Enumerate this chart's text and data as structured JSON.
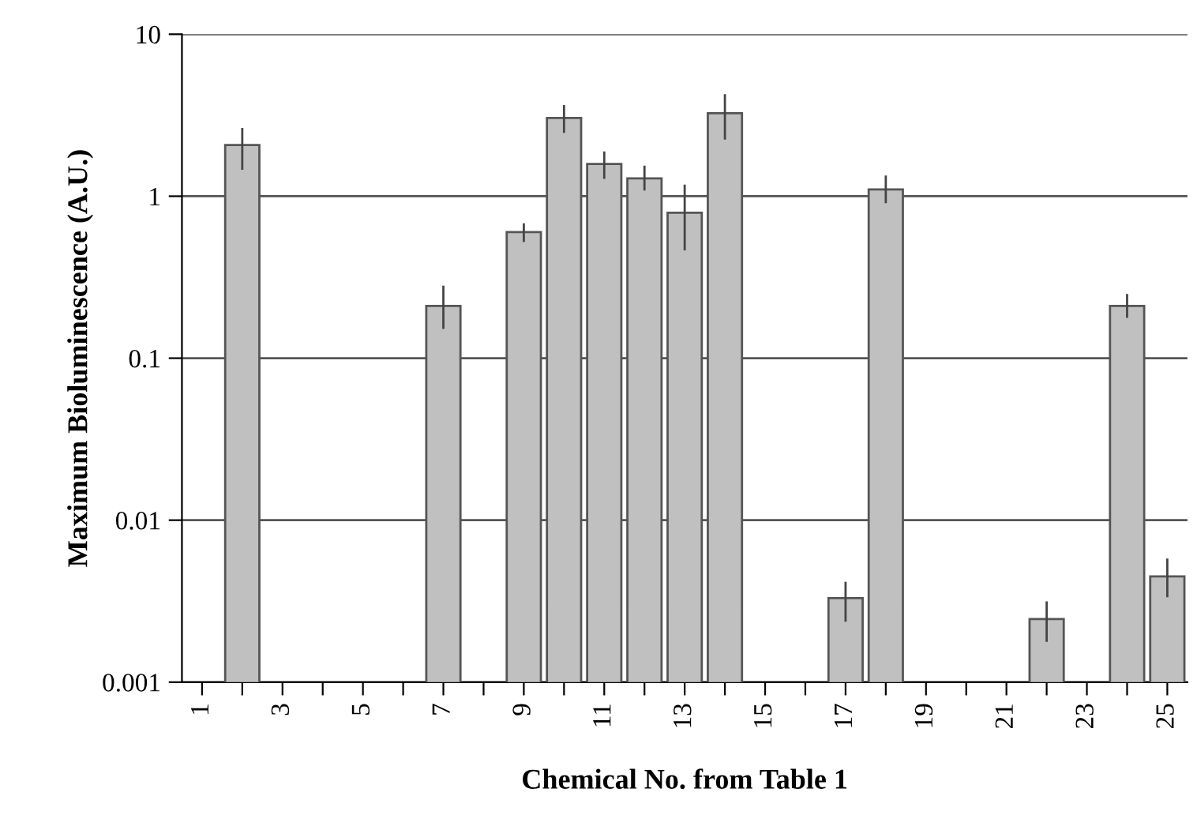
{
  "chart_data": {
    "type": "bar",
    "xlabel": "Chemical No. from Table 1",
    "ylabel": "Maximum Bioluminescence (A.U.)",
    "categories": [
      "1",
      null,
      "3",
      null,
      "5",
      null,
      "7",
      null,
      "9",
      null,
      "11",
      null,
      "13",
      null,
      "15",
      null,
      "17",
      null,
      "19",
      null,
      "21",
      null,
      "23",
      null,
      "25"
    ],
    "values": [
      null,
      2.07,
      null,
      null,
      null,
      null,
      0.21,
      null,
      0.6,
      3.04,
      1.58,
      1.29,
      0.79,
      3.25,
      null,
      null,
      0.0033,
      1.1,
      null,
      null,
      null,
      0.00245,
      null,
      0.21,
      0.0045
    ],
    "errors": [
      null,
      [
        1.48,
        2.6
      ],
      null,
      null,
      null,
      null,
      [
        0.154,
        0.276
      ],
      null,
      [
        0.53,
        0.67
      ],
      [
        2.5,
        3.6
      ],
      [
        1.3,
        1.86
      ],
      [
        1.1,
        1.52
      ],
      [
        0.47,
        1.16
      ],
      [
        2.27,
        4.2
      ],
      null,
      null,
      [
        0.0024,
        0.0041
      ],
      [
        0.92,
        1.32
      ],
      null,
      null,
      null,
      [
        0.0018,
        0.0031
      ],
      null,
      [
        0.18,
        0.245
      ],
      [
        0.0034,
        0.0057
      ]
    ],
    "color": "#c0c0c0",
    "log": "y",
    "ylim": [
      0.001,
      10
    ],
    "yticks": [
      {
        "value": 0.001,
        "label": "0.001"
      },
      {
        "value": 0.01,
        "label": "0.01"
      },
      {
        "value": 0.1,
        "label": "0.1"
      },
      {
        "value": 1,
        "label": "1"
      },
      {
        "value": 10,
        "label": "10"
      }
    ],
    "grid": "y"
  }
}
